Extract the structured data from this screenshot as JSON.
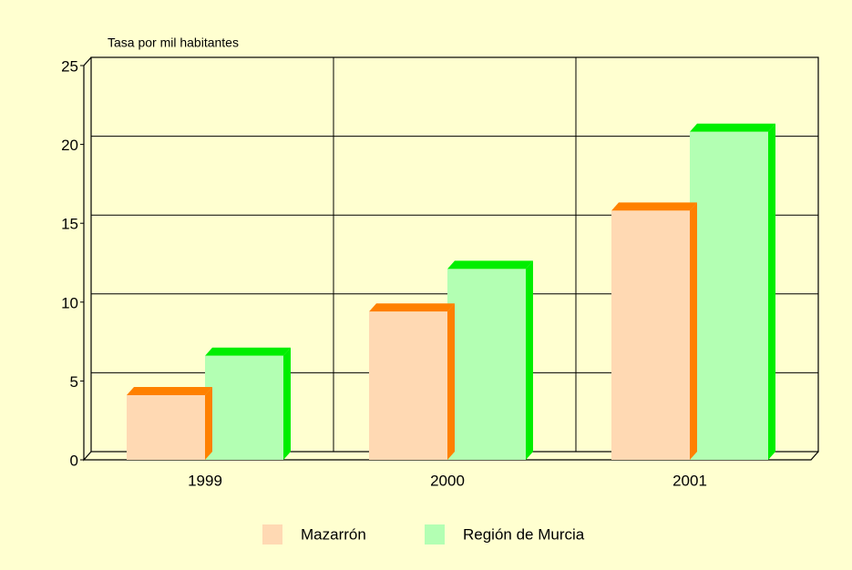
{
  "chart_data": {
    "type": "bar3d",
    "ylabel": "Tasa por mil habitantes",
    "categories": [
      "1999",
      "2000",
      "2001"
    ],
    "series": [
      {
        "name": "Mazarrón",
        "color": "#ffd9b3",
        "top_color": "#ff8000",
        "values": [
          4.1,
          9.4,
          15.8
        ]
      },
      {
        "name": "Región de Murcia",
        "color": "#b3ffb3",
        "top_color": "#00ee00",
        "values": [
          6.6,
          12.1,
          20.8
        ]
      }
    ],
    "ylim": [
      0,
      25
    ],
    "yticks": [
      0,
      5,
      10,
      15,
      20,
      25
    ],
    "grid": true,
    "legend": "bottom"
  }
}
